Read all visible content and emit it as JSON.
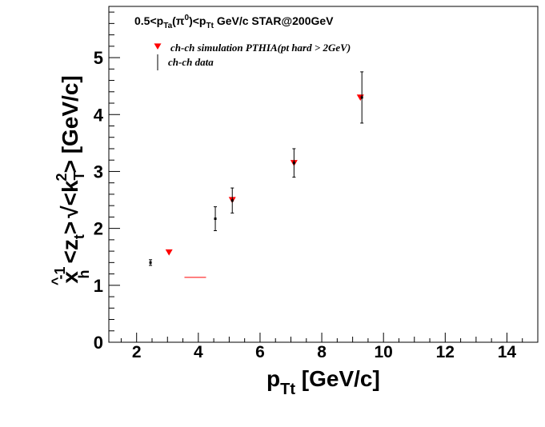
{
  "chart_data": {
    "type": "scatter",
    "title": "0.5<p_Ta(π^0)<p_Tt GeV/c STAR@200GeV",
    "xlabel": "p_Tt [GeV/c]",
    "ylabel": "x̂_h^-1 <z_t> √<k_T^2> [GeV/c]",
    "xlim": [
      1.1,
      15.0
    ],
    "ylim": [
      0,
      5.9
    ],
    "xticks": [
      "2",
      "4",
      "6",
      "8",
      "10",
      "12",
      "14"
    ],
    "yticks": [
      "0",
      "1",
      "2",
      "3",
      "4",
      "5"
    ],
    "legend_position": "top-left",
    "series": [
      {
        "name": "ch-ch simulation PTHIA(pt hard > 2GeV)",
        "marker": "triangle-down",
        "color": "#ff0000",
        "points": [
          {
            "x": 3.05,
            "y": 1.58
          },
          {
            "x": 5.1,
            "y": 2.5
          },
          {
            "x": 7.1,
            "y": 3.15
          },
          {
            "x": 9.25,
            "y": 4.3
          }
        ]
      },
      {
        "name": "ch-ch data",
        "marker": "point-errorbar",
        "color": "#000000",
        "points": [
          {
            "x": 2.45,
            "y": 1.4,
            "err": 0.05
          },
          {
            "x": 4.55,
            "y": 2.17,
            "err": 0.21
          },
          {
            "x": 5.1,
            "y": 2.49,
            "err": 0.22
          },
          {
            "x": 7.1,
            "y": 3.15,
            "err": 0.25
          },
          {
            "x": 9.3,
            "y": 4.3,
            "err": 0.45
          }
        ]
      }
    ],
    "annotations": [
      {
        "type": "hline",
        "x1": 3.55,
        "x2": 4.25,
        "y": 1.14,
        "color": "#ff0000"
      }
    ]
  }
}
